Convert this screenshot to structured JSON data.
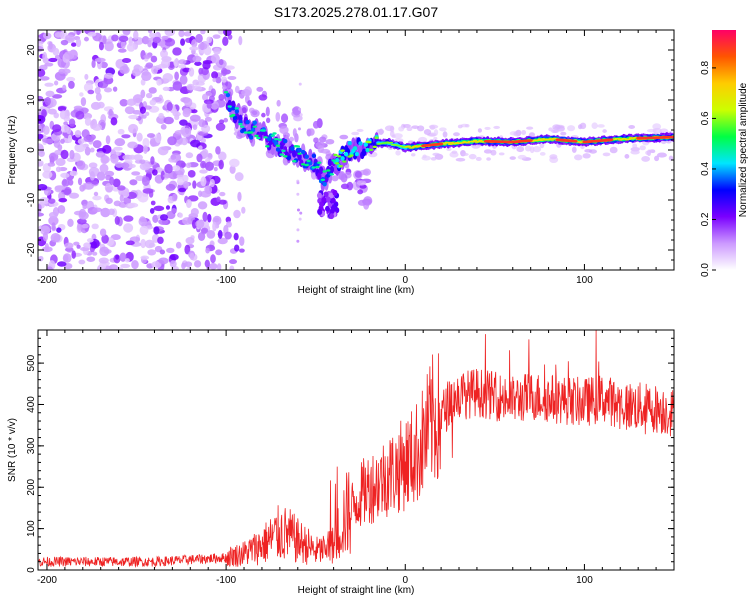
{
  "title": "S173.2025.278.01.17.G07",
  "chart_data": [
    {
      "type": "heatmap",
      "name": "spectrogram",
      "xlabel": "Height of straight line (km)",
      "ylabel": "Frequency (Hz)",
      "xlim": [
        -205,
        150
      ],
      "ylim": [
        -24,
        24
      ],
      "xticks": [
        -200,
        -100,
        0,
        100
      ],
      "yticks": [
        -20,
        -10,
        0,
        10,
        20
      ],
      "grid": false,
      "ridge": {
        "x": [
          -100,
          -90,
          -80,
          -70,
          -60,
          -50,
          -45,
          -40,
          -30,
          -20,
          -10,
          0,
          20,
          40,
          60,
          80,
          100,
          120,
          150
        ],
        "y": [
          10,
          5,
          3,
          1,
          -1,
          -3,
          -6,
          -3,
          0,
          1,
          1.5,
          0.5,
          1.2,
          1.8,
          1.6,
          2.2,
          1.6,
          2.2,
          2.6
        ]
      },
      "noise_region_km": [
        -205,
        -100
      ],
      "colorbar": {
        "label": "Normalized spectral amplitude",
        "ticks": [
          0.0,
          0.2,
          0.4,
          0.6,
          0.8
        ],
        "range": [
          0,
          0.95
        ],
        "colors": [
          "#ffffff",
          "#cc99ff",
          "#7a00ff",
          "#0000ff",
          "#00e5ff",
          "#00ff44",
          "#ccff00",
          "#ffcc00",
          "#ff5500",
          "#ff0066"
        ]
      }
    },
    {
      "type": "line",
      "name": "snr",
      "xlabel": "Height of straight line (km)",
      "ylabel": "SNR (10 * v/v)",
      "xlim": [
        -205,
        150
      ],
      "ylim": [
        0,
        580
      ],
      "xticks": [
        -200,
        -100,
        0,
        100
      ],
      "yticks": [
        0,
        100,
        200,
        300,
        400,
        500
      ],
      "color": "#ee2222",
      "grid": false,
      "series": [
        {
          "name": "SNR",
          "x": [
            -205,
            -180,
            -160,
            -140,
            -120,
            -100,
            -90,
            -80,
            -75,
            -70,
            -65,
            -60,
            -55,
            -50,
            -45,
            -40,
            -35,
            -30,
            -25,
            -20,
            -15,
            -10,
            -5,
            0,
            5,
            10,
            15,
            20,
            25,
            30,
            40,
            50,
            60,
            70,
            80,
            90,
            100,
            110,
            120,
            130,
            140,
            150
          ],
          "y": [
            20,
            20,
            20,
            20,
            25,
            30,
            40,
            60,
            75,
            90,
            85,
            70,
            60,
            45,
            50,
            60,
            120,
            150,
            180,
            200,
            210,
            230,
            240,
            260,
            275,
            310,
            360,
            370,
            410,
            420,
            430,
            420,
            410,
            420,
            415,
            410,
            405,
            415,
            400,
            395,
            390,
            380
          ]
        }
      ]
    }
  ]
}
